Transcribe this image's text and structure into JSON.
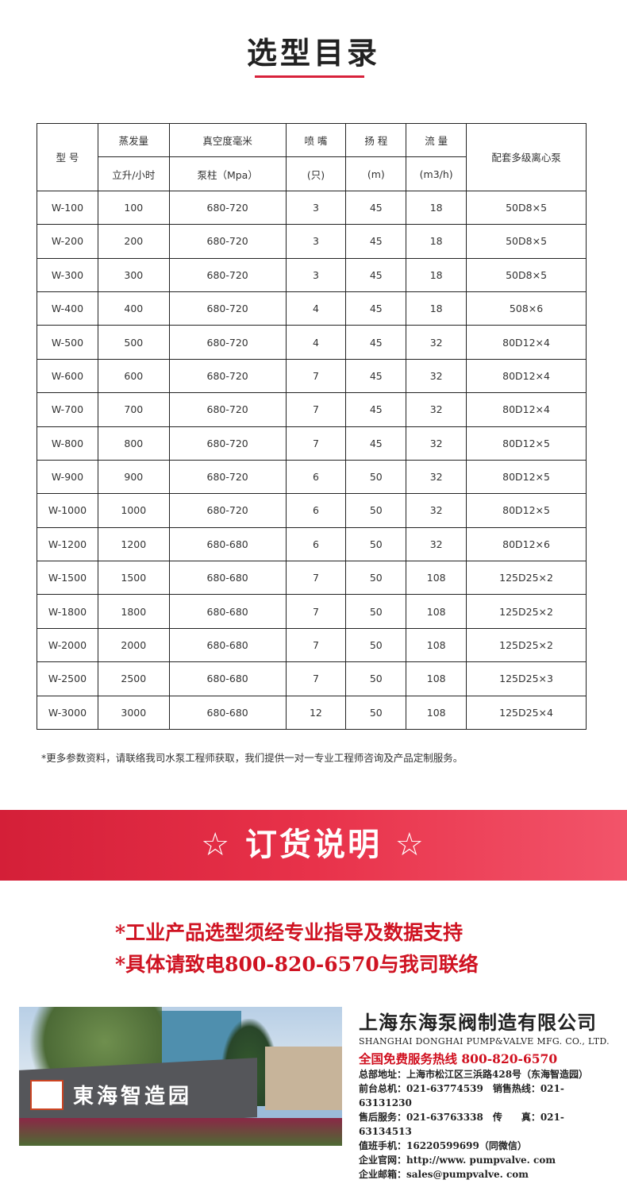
{
  "title": "选型目录",
  "table": {
    "header": {
      "model": "型 号",
      "evap": "蒸发量",
      "evap_unit": "立升/小时",
      "vac": "真空度毫米",
      "vac_unit": "泵柱（Mpa）",
      "nozzle": "喷 嘴",
      "nozzle_unit": "(只)",
      "head": "扬 程",
      "head_unit": "(m)",
      "flow": "流 量",
      "flow_unit": "(m3/h)",
      "pump": "配套多级离心泵"
    },
    "rows": [
      [
        "W-100",
        "100",
        "680-720",
        "3",
        "45",
        "18",
        "50D8×5"
      ],
      [
        "W-200",
        "200",
        "680-720",
        "3",
        "45",
        "18",
        "50D8×5"
      ],
      [
        "W-300",
        "300",
        "680-720",
        "3",
        "45",
        "18",
        "50D8×5"
      ],
      [
        "W-400",
        "400",
        "680-720",
        "4",
        "45",
        "18",
        "508×6"
      ],
      [
        "W-500",
        "500",
        "680-720",
        "4",
        "45",
        "32",
        "80D12×4"
      ],
      [
        "W-600",
        "600",
        "680-720",
        "7",
        "45",
        "32",
        "80D12×4"
      ],
      [
        "W-700",
        "700",
        "680-720",
        "7",
        "45",
        "32",
        "80D12×4"
      ],
      [
        "W-800",
        "800",
        "680-720",
        "7",
        "45",
        "32",
        "80D12×5"
      ],
      [
        "W-900",
        "900",
        "680-720",
        "6",
        "50",
        "32",
        "80D12×5"
      ],
      [
        "W-1000",
        "1000",
        "680-720",
        "6",
        "50",
        "32",
        "80D12×5"
      ],
      [
        "W-1200",
        "1200",
        "680-680",
        "6",
        "50",
        "32",
        "80D12×6"
      ],
      [
        "W-1500",
        "1500",
        "680-680",
        "7",
        "50",
        "108",
        "125D25×2"
      ],
      [
        "W-1800",
        "1800",
        "680-680",
        "7",
        "50",
        "108",
        "125D25×2"
      ],
      [
        "W-2000",
        "2000",
        "680-680",
        "7",
        "50",
        "108",
        "125D25×2"
      ],
      [
        "W-2500",
        "2500",
        "680-680",
        "7",
        "50",
        "108",
        "125D25×3"
      ],
      [
        "W-3000",
        "3000",
        "680-680",
        "12",
        "50",
        "108",
        "125D25×4"
      ]
    ]
  },
  "note": "*更多参数资料，请联络我司水泵工程师获取，我们提供一对一专业工程师咨询及产品定制服务。",
  "banner": "☆ 订货说明 ☆",
  "order_lines": [
    "*工业产品选型须经专业指导及数据支持",
    "*具体请致电800-820-6570与我司联络"
  ],
  "photo": {
    "sign": "東海智造园"
  },
  "company": {
    "name_cn": "上海东海泵阀制造有限公司",
    "name_en": "SHANGHAI DONGHAI PUMP&VALVE MFG. CO., LTD.",
    "hotline": "全国免费服务热线  800-820-6570",
    "lines": [
      "总部地址：上海市松江区三浜路428号（东海智造园）",
      "前台总机：021-63774539　销售热线：021-63131230",
      "售后服务：021-63763338　传　　真：021-63134513",
      "值班手机：16220599699（同微信）",
      "企业官网：http://www. pumpvalve. com",
      "企业邮箱：sales@pumpvalve. com"
    ]
  },
  "colors": {
    "accent": "#d8213b"
  }
}
